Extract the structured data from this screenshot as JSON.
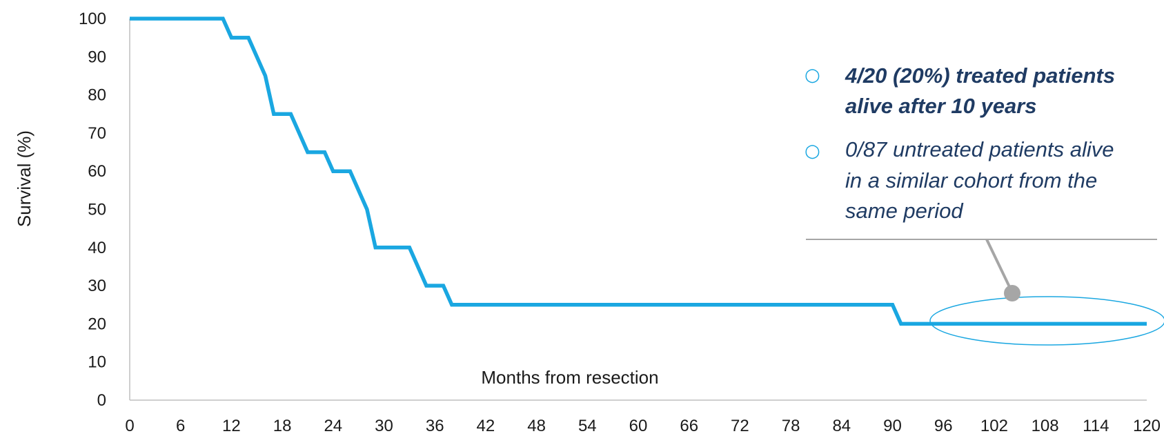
{
  "chart_data": {
    "type": "line",
    "title": "",
    "xlabel": "Months from resection",
    "ylabel": "Survival (%)",
    "xlim": [
      0,
      120
    ],
    "ylim": [
      0,
      100
    ],
    "x_ticks": [
      0,
      6,
      12,
      18,
      24,
      30,
      36,
      42,
      48,
      54,
      60,
      66,
      72,
      78,
      84,
      90,
      96,
      102,
      108,
      114,
      120
    ],
    "y_ticks": [
      0,
      10,
      20,
      30,
      40,
      50,
      60,
      70,
      80,
      90,
      100
    ],
    "grid": false,
    "series": [
      {
        "color": "#1AA7E1",
        "points": [
          [
            0,
            100
          ],
          [
            11,
            100
          ],
          [
            12,
            95
          ],
          [
            14,
            95
          ],
          [
            16,
            85
          ],
          [
            17,
            75
          ],
          [
            19,
            75
          ],
          [
            21,
            65
          ],
          [
            23,
            65
          ],
          [
            24,
            60
          ],
          [
            26,
            60
          ],
          [
            28,
            50
          ],
          [
            29,
            40
          ],
          [
            33,
            40
          ],
          [
            35,
            30
          ],
          [
            37,
            30
          ],
          [
            38,
            25
          ],
          [
            90,
            25
          ],
          [
            91,
            20
          ],
          [
            120,
            20
          ]
        ]
      }
    ],
    "annotations": [
      {
        "text": "4/20 (20%) treated patients alive after 10 years",
        "style": "bold-italic",
        "color": "#1F3B63"
      },
      {
        "text": "0/87 untreated patients alive in a similar cohort from the same period",
        "style": "italic",
        "color": "#1F3B63"
      }
    ]
  },
  "callout": {
    "bullet_symbol": "○",
    "bullet_color": "#1AA7E1",
    "line_color": "#A6A6A6",
    "item1_lines": [
      "4/20 (20%) treated patients",
      "alive after 10 years"
    ],
    "item2_lines": [
      "0/87 untreated patients alive",
      "in a similar cohort from the",
      "same period"
    ]
  }
}
